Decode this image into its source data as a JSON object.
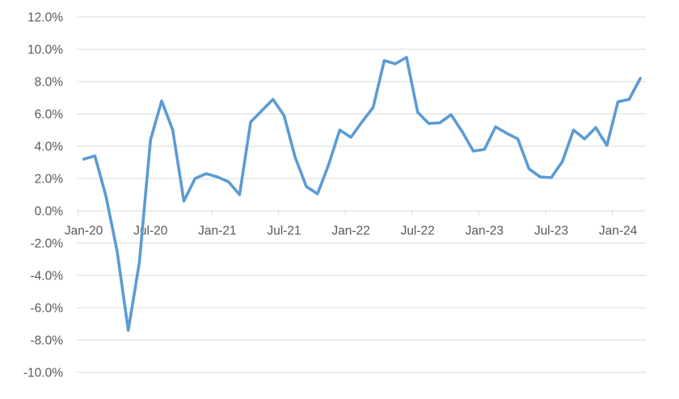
{
  "chart_data": {
    "type": "line",
    "x": [
      "Jan-20",
      "Feb-20",
      "Mar-20",
      "Apr-20",
      "May-20",
      "Jun-20",
      "Jul-20",
      "Aug-20",
      "Sep-20",
      "Oct-20",
      "Nov-20",
      "Dec-20",
      "Jan-21",
      "Feb-21",
      "Mar-21",
      "Apr-21",
      "May-21",
      "Jun-21",
      "Jul-21",
      "Aug-21",
      "Sep-21",
      "Oct-21",
      "Nov-21",
      "Dec-21",
      "Jan-22",
      "Feb-22",
      "Mar-22",
      "Apr-22",
      "May-22",
      "Jun-22",
      "Jul-22",
      "Aug-22",
      "Sep-22",
      "Oct-22",
      "Nov-22",
      "Dec-22",
      "Jan-23",
      "Feb-23",
      "Mar-23",
      "Apr-23",
      "May-23",
      "Jun-23",
      "Jul-23",
      "Aug-23",
      "Sep-23",
      "Oct-23",
      "Nov-23",
      "Dec-23",
      "Jan-24",
      "Feb-24",
      "Mar-24"
    ],
    "series": [
      {
        "name": "value-yoy-percent",
        "values": [
          3.2,
          3.4,
          0.9,
          -2.5,
          -7.4,
          -3.2,
          4.4,
          6.8,
          5.0,
          0.6,
          2.0,
          2.3,
          2.1,
          1.8,
          1.0,
          5.5,
          6.2,
          6.9,
          5.9,
          3.3,
          1.5,
          1.05,
          2.85,
          5.0,
          4.55,
          5.5,
          6.4,
          9.3,
          9.1,
          9.5,
          6.1,
          5.4,
          5.45,
          5.95,
          4.9,
          3.7,
          3.8,
          5.2,
          4.8,
          4.45,
          2.6,
          2.1,
          2.05,
          3.05,
          5.0,
          4.45,
          5.15,
          4.05,
          6.75,
          6.9,
          8.2
        ]
      }
    ],
    "x_tick_labels": [
      "Jan-20",
      "Jul-20",
      "Jan-21",
      "Jul-21",
      "Jan-22",
      "Jul-22",
      "Jan-23",
      "Jul-23",
      "Jan-24"
    ],
    "x_tick_every": 6,
    "y_tick_values": [
      12,
      10,
      8,
      6,
      4,
      2,
      0,
      -2,
      -4,
      -6,
      -8,
      -10
    ],
    "y_tick_labels": [
      "12.0%",
      "10.0%",
      "8.0%",
      "6.0%",
      "4.0%",
      "2.0%",
      "0.0%",
      "-2.0%",
      "-4.0%",
      "-6.0%",
      "-8.0%",
      "-10.0%"
    ],
    "ylim": [
      -10,
      12
    ],
    "grid": true,
    "legend": "none",
    "line_color": "#5B9BD5",
    "gridline_color": "#D9D9D9",
    "axis_line_color": "#D9D9D9",
    "label_color": "#595959",
    "background_color": "#FFFFFF"
  }
}
